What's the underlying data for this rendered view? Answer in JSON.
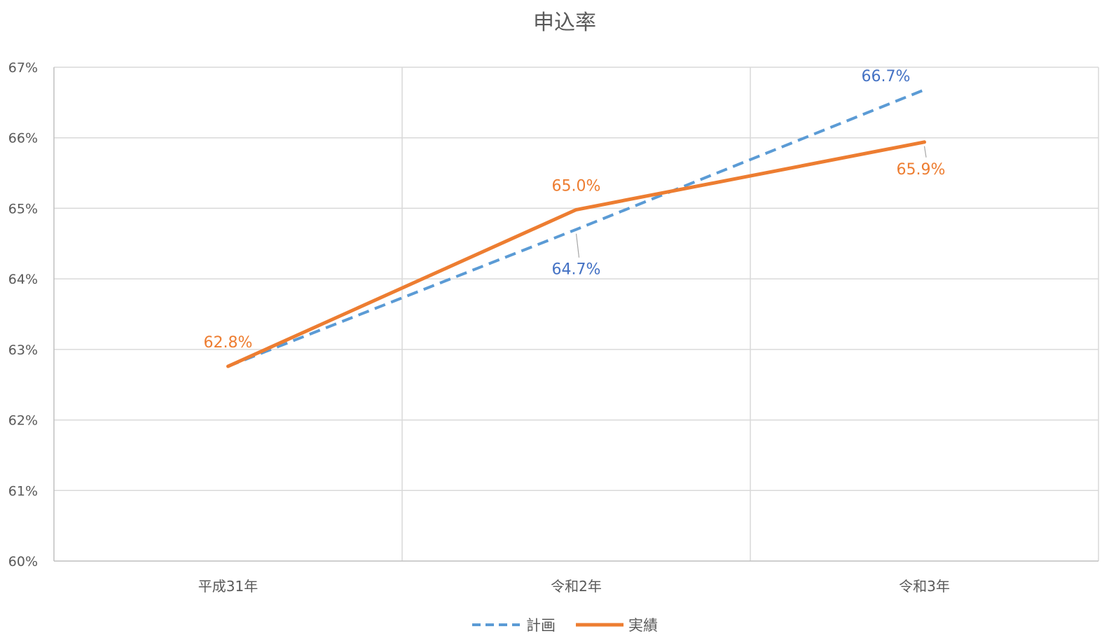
{
  "chart_data": {
    "type": "line",
    "title": "申込率",
    "categories": [
      "平成31年",
      "令和2年",
      "令和3年"
    ],
    "y_tick_labels": [
      "60%",
      "61%",
      "62%",
      "63%",
      "64%",
      "65%",
      "66%",
      "67%"
    ],
    "ylim": [
      60,
      67
    ],
    "y_unit": "%",
    "grid": {
      "horizontal": true,
      "vertical": true
    },
    "legend_position": "bottom-center",
    "series": [
      {
        "name": "計画",
        "values": [
          62.76,
          64.7,
          66.68
        ],
        "data_labels": [
          null,
          "64.7%",
          "66.7%"
        ],
        "color": "#5B9BD5",
        "line_style": "dashed"
      },
      {
        "name": "実績",
        "values": [
          62.76,
          64.98,
          65.94
        ],
        "data_labels": [
          "62.8%",
          "65.0%",
          "65.9%"
        ],
        "color": "#ED7D31",
        "line_style": "solid"
      }
    ]
  }
}
